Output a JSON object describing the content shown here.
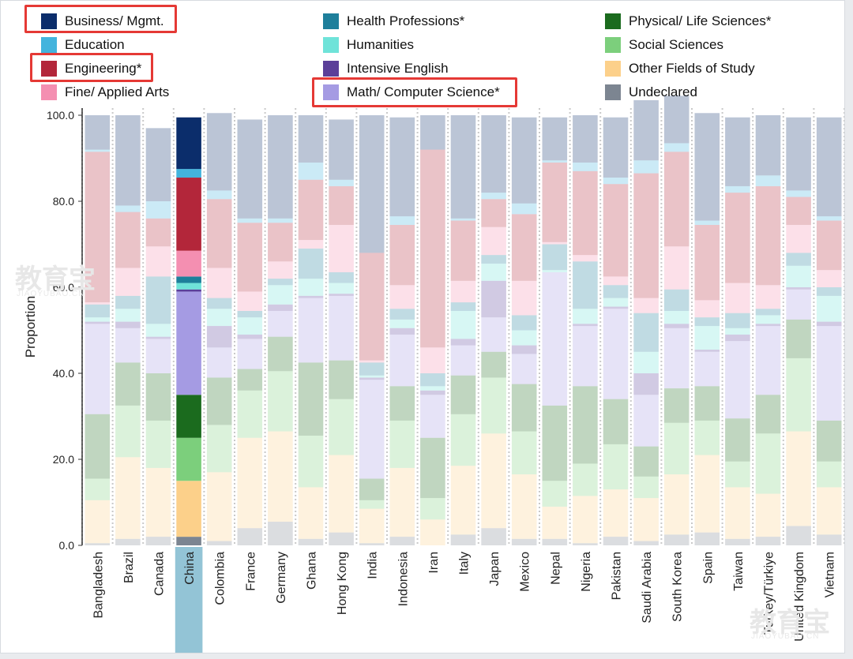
{
  "legend": {
    "items": [
      {
        "label": "Business/ Mgmt.",
        "color": "#0b2d6b"
      },
      {
        "label": "Education",
        "color": "#43b4dd"
      },
      {
        "label": "Engineering*",
        "color": "#b3263a"
      },
      {
        "label": "Fine/ Applied Arts",
        "color": "#f48fb1"
      },
      {
        "label": "Health Professions*",
        "color": "#1e7f9b"
      },
      {
        "label": "Humanities",
        "color": "#6fe3d9"
      },
      {
        "label": "Intensive English",
        "color": "#5b3f99"
      },
      {
        "label": "Math/ Computer Science*",
        "color": "#a59be3"
      },
      {
        "label": "Physical/ Life Sciences*",
        "color": "#1b6b1e"
      },
      {
        "label": "Social Sciences",
        "color": "#7ccf7c"
      },
      {
        "label": "Other Fields of Study",
        "color": "#fcd08a"
      },
      {
        "label": "Undeclared",
        "color": "#7c8591"
      }
    ],
    "highlighted": [
      "Business/ Mgmt.",
      "Engineering*",
      "Math/ Computer Science*"
    ]
  },
  "chart_data": {
    "type": "bar",
    "stacked": true,
    "ylabel": "Proportion",
    "ylim": [
      0,
      100
    ],
    "yticks": [
      "0.0",
      "20.0",
      "40.0",
      "60.0",
      "80.0",
      "100.0"
    ],
    "highlighted_category": "China",
    "categories": [
      "Bangladesh",
      "Brazil",
      "Canada",
      "China",
      "Colombia",
      "France",
      "Germany",
      "Ghana",
      "Hong Kong",
      "India",
      "Indonesia",
      "Iran",
      "Italy",
      "Japan",
      "Mexico",
      "Nepal",
      "Nigeria",
      "Pakistan",
      "Saudi Arabia",
      "South Korea",
      "Spain",
      "Taiwan",
      "Turkey/Türkiye",
      "United Kingdom",
      "Vietnam"
    ],
    "series": [
      {
        "name": "Undeclared",
        "values": [
          0.5,
          1.5,
          2,
          2,
          1,
          4,
          5.5,
          1.5,
          3,
          0.5,
          2,
          0,
          2.5,
          4,
          1.5,
          1.5,
          0.5,
          2,
          1,
          2.5,
          3,
          1.5,
          2,
          4.5,
          2.5
        ]
      },
      {
        "name": "Other Fields of Study",
        "values": [
          10,
          19,
          16,
          13,
          16,
          21,
          21,
          12,
          18,
          8,
          16,
          6,
          16,
          22,
          15,
          7.5,
          11,
          11,
          10,
          14,
          18,
          12,
          10,
          22,
          11
        ]
      },
      {
        "name": "Social Sciences",
        "values": [
          5,
          12,
          11,
          10,
          11,
          11,
          14,
          12,
          13,
          2,
          11,
          5,
          12,
          13,
          10,
          6,
          7.5,
          10.5,
          5,
          12,
          8,
          6,
          14,
          17,
          6
        ]
      },
      {
        "name": "Physical/ Life Sciences*",
        "values": [
          15,
          10,
          11,
          10,
          11,
          5,
          8,
          17,
          9,
          5,
          8,
          14,
          9,
          6,
          11,
          17.5,
          18,
          10.5,
          7,
          8,
          8,
          10,
          9,
          9,
          9.5
        ]
      },
      {
        "name": "Math/ Computer Science*",
        "values": [
          21,
          8,
          8,
          24,
          7,
          7,
          6,
          15,
          15,
          23,
          12,
          10,
          7,
          8,
          7,
          31,
          14,
          21,
          12,
          14,
          8,
          18,
          16,
          7,
          22
        ]
      },
      {
        "name": "Intensive English",
        "values": [
          0.5,
          1.5,
          0.5,
          0.5,
          5,
          1,
          1.5,
          0.5,
          0.5,
          0.5,
          1.5,
          1,
          1.5,
          8.5,
          2,
          0,
          0.5,
          0.5,
          5,
          1,
          0.5,
          1.5,
          0.5,
          0.5,
          1
        ]
      },
      {
        "name": "Humanities",
        "values": [
          1,
          3,
          3,
          1.5,
          4,
          4,
          4.5,
          4,
          2.5,
          0.5,
          2,
          1,
          6.5,
          4,
          3.5,
          0.5,
          3.5,
          2,
          5,
          3,
          5.5,
          1.5,
          2,
          5,
          6
        ]
      },
      {
        "name": "Health Professions*",
        "values": [
          3,
          3,
          11,
          1.5,
          2.5,
          1.5,
          1.5,
          7,
          2.5,
          3,
          2.5,
          3,
          2,
          2,
          3.5,
          6,
          11,
          3,
          9,
          5,
          2,
          3.5,
          1.5,
          3,
          2
        ]
      },
      {
        "name": "Fine/ Applied Arts",
        "values": [
          0.5,
          6.5,
          7,
          6,
          7,
          4.5,
          4,
          2,
          11,
          0.5,
          5.5,
          6,
          5,
          6.5,
          8,
          0.5,
          1.5,
          2,
          3.5,
          10,
          4,
          7,
          5.5,
          6.5,
          4
        ]
      },
      {
        "name": "Engineering*",
        "values": [
          35,
          13,
          6.5,
          17,
          16,
          16,
          9,
          14,
          9,
          25,
          14,
          46,
          14,
          6.5,
          15.5,
          18.5,
          19.5,
          21.5,
          29,
          22,
          17.5,
          21,
          23,
          6.5,
          11.5
        ]
      },
      {
        "name": "Education",
        "values": [
          0.5,
          1.5,
          4,
          2,
          2,
          1,
          1,
          4,
          1.5,
          0,
          2,
          0,
          0.5,
          1.5,
          2.5,
          0.5,
          2,
          1.5,
          3,
          2,
          1,
          1.5,
          2.5,
          1.5,
          1
        ]
      },
      {
        "name": "Business/ Mgmt.",
        "values": [
          8,
          21,
          17,
          12,
          18,
          23,
          24,
          11,
          14,
          32,
          23,
          8,
          24,
          18,
          20,
          10,
          11,
          14,
          14,
          11,
          25,
          16,
          14,
          17,
          23
        ]
      }
    ]
  }
}
